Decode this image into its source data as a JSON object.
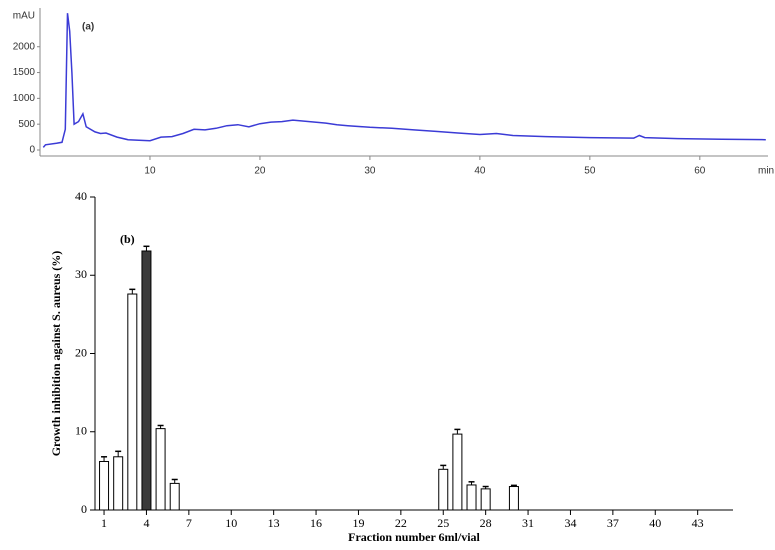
{
  "chart_data": [
    {
      "type": "line",
      "panel_label": "(a)",
      "ylabel": "mAU",
      "xlabel": "min",
      "x": [
        0.3,
        0.5,
        1.5,
        2.0,
        2.3,
        2.5,
        2.7,
        2.9,
        3.1,
        3.5,
        3.9,
        4.2,
        5,
        5.5,
        6,
        7,
        8,
        10,
        11,
        12,
        13,
        14,
        15,
        16,
        17,
        18,
        19,
        20,
        21,
        22,
        23,
        24,
        25,
        26,
        27,
        28,
        30,
        32,
        34,
        36,
        38,
        40,
        41.5,
        43,
        46,
        50,
        54,
        54.5,
        55,
        58,
        62,
        66
      ],
      "series": [
        {
          "name": "chromatogram",
          "color": "#3b3bd6",
          "values": [
            50,
            100,
            130,
            150,
            400,
            2650,
            2300,
            1500,
            500,
            550,
            700,
            450,
            350,
            320,
            330,
            250,
            200,
            180,
            250,
            260,
            320,
            400,
            390,
            420,
            470,
            490,
            450,
            510,
            540,
            550,
            580,
            560,
            540,
            520,
            490,
            470,
            440,
            420,
            390,
            360,
            330,
            300,
            320,
            280,
            260,
            240,
            230,
            280,
            240,
            220,
            210,
            200
          ]
        }
      ],
      "xlim": [
        0,
        66.2
      ],
      "xticks": [
        10,
        20,
        30,
        40,
        50,
        60
      ],
      "ylim": [
        0,
        2750
      ],
      "yticks": [
        0,
        500,
        1000,
        1500,
        2000
      ]
    },
    {
      "type": "bar",
      "panel_label": "(b)",
      "ylabel": "Growth inhibition against S. aureus (%)",
      "xlabel": "Fraction number 6ml/vial",
      "x": [
        1,
        2,
        3,
        4,
        5,
        6,
        25,
        26,
        27,
        28,
        30
      ],
      "values": [
        6.2,
        6.8,
        27.6,
        33.1,
        10.4,
        3.4,
        5.2,
        9.7,
        3.2,
        2.7,
        3.0
      ],
      "errors": [
        0.6,
        0.7,
        0.6,
        0.6,
        0.4,
        0.5,
        0.5,
        0.6,
        0.4,
        0.3,
        0.15
      ],
      "colors": [
        "#ffffff",
        "#ffffff",
        "#ffffff",
        "#3a3a3a",
        "#ffffff",
        "#ffffff",
        "#ffffff",
        "#ffffff",
        "#ffffff",
        "#ffffff",
        "#ffffff"
      ],
      "xlim": [
        0.36,
        45.5
      ],
      "xticks": [
        1,
        4,
        7,
        10,
        13,
        16,
        19,
        22,
        25,
        28,
        31,
        34,
        37,
        40,
        43
      ],
      "ylim": [
        0,
        40
      ],
      "yticks": [
        0,
        10,
        20,
        30,
        40
      ]
    }
  ]
}
